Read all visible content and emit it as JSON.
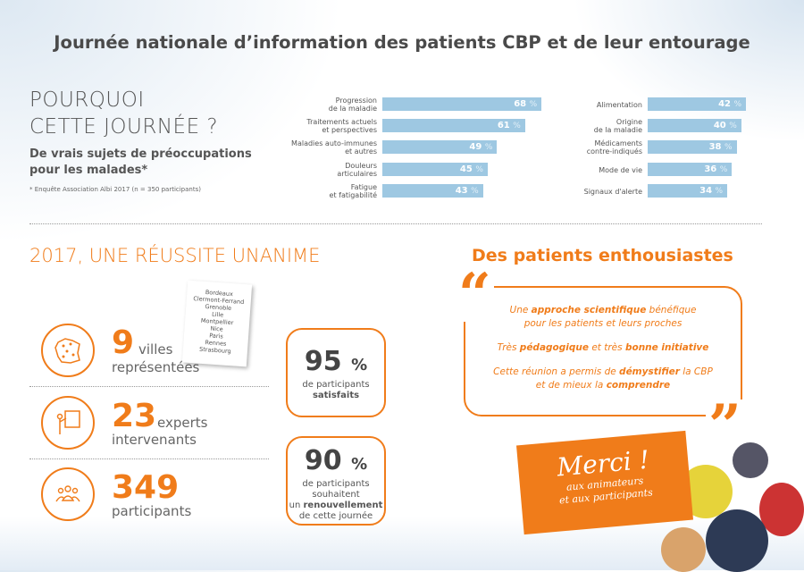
{
  "title": "Journée nationale d’information des patients CBP et de leur entourage",
  "why": {
    "line1": "POURQUOI",
    "line2": "CETTE JOURNÉE ?",
    "sub1": "De vrais sujets de préoccupations",
    "sub2": "pour les malades*",
    "note": "* Enquête Association Albi 2017 (n = 350 participants)"
  },
  "chart_data": {
    "type": "bar",
    "unit": "%",
    "series": [
      {
        "name": "left",
        "categories": [
          [
            "Progression",
            "de la maladie"
          ],
          [
            "Traitements actuels",
            "et perspectives"
          ],
          [
            "Maladies auto-immunes",
            "et autres"
          ],
          [
            "Douleurs",
            "articulaires"
          ],
          [
            "Fatigue",
            "et fatigabilité"
          ]
        ],
        "values": [
          68,
          61,
          49,
          45,
          43
        ]
      },
      {
        "name": "right",
        "categories": [
          [
            "Alimentation",
            ""
          ],
          [
            "Origine",
            "de la maladie"
          ],
          [
            "Médicaments",
            "contre-indiqués"
          ],
          [
            "Mode de vie",
            ""
          ],
          [
            "Signaux d'alerte",
            ""
          ]
        ],
        "values": [
          42,
          40,
          38,
          36,
          34
        ]
      }
    ]
  },
  "success": {
    "title": "2017, UNE RÉUSSITE UNANIME",
    "stats": [
      {
        "n": "9",
        "a": "villes",
        "b": "représentées"
      },
      {
        "n": "23",
        "a": "experts",
        "b": "intervenants"
      },
      {
        "n": "349",
        "a": "",
        "b": "participants"
      }
    ],
    "cities": [
      "Bordeaux",
      "Clermont-Ferrand",
      "Grenoble",
      "Lille",
      "Montpellier",
      "Nice",
      "Paris",
      "Rennes",
      "Strasbourg"
    ],
    "box1": {
      "n": "95",
      "pct": "%",
      "l1": "de participants",
      "l2": "satisfaits"
    },
    "box2": {
      "n": "90",
      "pct": "%",
      "l1": "de participants",
      "l2": "souhaitent",
      "l3a": "un ",
      "l3b": "renouvellement",
      "l4": "de cette journée"
    }
  },
  "enth": {
    "title": "Des patients enthousiastes",
    "q1": [
      "Une ",
      "approche scientifique",
      " bénéfique"
    ],
    "q1b": "pour les patients et leurs proches",
    "q2": [
      "Très ",
      "pédagogique",
      " et très ",
      "bonne initiative"
    ],
    "q3": [
      "Cette réunion a permis de ",
      "démystifier",
      " la CBP"
    ],
    "q3b": [
      "et de mieux la ",
      "comprendre"
    ]
  },
  "merci": {
    "m": "Merci !",
    "l1": "aux animateurs",
    "l2": "et aux participants"
  },
  "colors": {
    "orange": "#f07c1a",
    "bar": "#9ec8e2"
  }
}
